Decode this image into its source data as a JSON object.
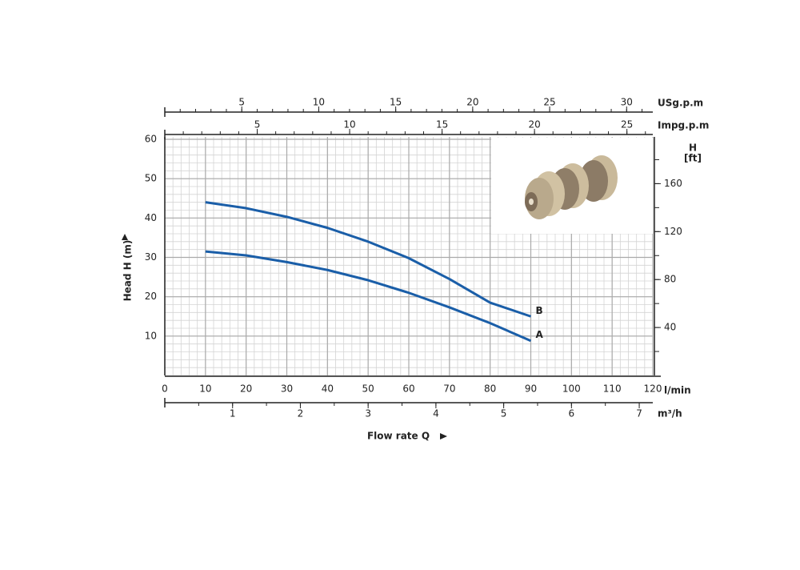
{
  "chart_data": {
    "type": "line",
    "x_title": "Flow rate Q",
    "x_label": "l/min",
    "y_label": "Head H (m)",
    "y2_label": "H",
    "y2_unit": "[ft]",
    "x": [
      10,
      20,
      30,
      40,
      50,
      60,
      70,
      80,
      90
    ],
    "series": [
      {
        "name": "A",
        "color": "#1a5ea8",
        "values": [
          31.5,
          30.5,
          28.8,
          26.8,
          24.2,
          21,
          17.3,
          13.3,
          8.8
        ]
      },
      {
        "name": "B",
        "color": "#1a5ea8",
        "values": [
          44,
          42.5,
          40.3,
          37.5,
          34,
          29.8,
          24.5,
          18.5,
          15
        ]
      }
    ],
    "xlim": [
      0,
      120
    ],
    "xticks": [
      0,
      10,
      20,
      30,
      40,
      50,
      60,
      70,
      80,
      90,
      100,
      110,
      120
    ],
    "ylim": [
      0,
      60
    ],
    "yticks": [
      10,
      20,
      30,
      40,
      50,
      60
    ],
    "y2lim": [
      0,
      197
    ],
    "y2ticks": [
      40,
      80,
      120,
      160
    ],
    "extra_x_axes": [
      {
        "label": "USg.p.m",
        "position": "top",
        "lim": [
          0,
          31.7
        ],
        "ticks": [
          5,
          10,
          15,
          20,
          25,
          30
        ]
      },
      {
        "label": "Impg.p.m",
        "position": "top",
        "lim": [
          0,
          26.4
        ],
        "ticks": [
          5,
          10,
          15,
          20,
          25
        ]
      },
      {
        "label": "m³/h",
        "position": "bottom",
        "lim": [
          0,
          7.2
        ],
        "ticks": [
          1,
          2,
          3,
          4,
          5,
          6,
          7
        ]
      }
    ],
    "grid": true
  }
}
